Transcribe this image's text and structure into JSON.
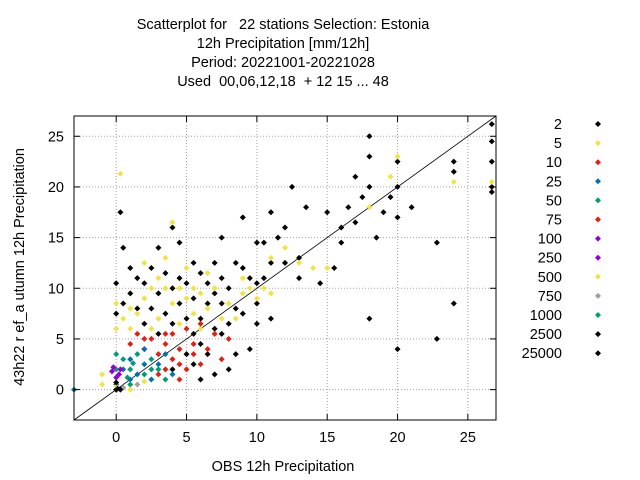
{
  "chart_data": {
    "type": "scatter",
    "title_lines": [
      "Scatterplot for   22 stations Selection: Estonia",
      "12h Precipitation [mm/12h]",
      "Period: 20221001-20221028",
      "Used  00,06,12,18  + 12 15 ... 48"
    ],
    "xlabel": "OBS 12h Precipitation",
    "ylabel": "43h22 r ef_a utumn 12h Precipitation",
    "xlim": [
      -3,
      27
    ],
    "ylim": [
      -3,
      27
    ],
    "x_ticks": [
      0,
      5,
      10,
      15,
      20,
      25
    ],
    "y_ticks": [
      0,
      5,
      10,
      15,
      20,
      25
    ],
    "grid": true,
    "legend_position": "right",
    "diagonal_line": true,
    "legend": [
      {
        "label": "2",
        "color": "#000000"
      },
      {
        "label": "5",
        "color": "#f0e442"
      },
      {
        "label": "10",
        "color": "#e51e10"
      },
      {
        "label": "25",
        "color": "#0072b2"
      },
      {
        "label": "50",
        "color": "#009e73"
      },
      {
        "label": "75",
        "color": "#e51e10"
      },
      {
        "label": "100",
        "color": "#9400d3"
      },
      {
        "label": "250",
        "color": "#9400d3"
      },
      {
        "label": "500",
        "color": "#f0e442"
      },
      {
        "label": "750",
        "color": "#a0a0a0"
      },
      {
        "label": "1000",
        "color": "#009e73"
      },
      {
        "label": "2500",
        "color": "#000000"
      },
      {
        "label": "25000",
        "color": "#000000"
      }
    ],
    "series": [
      {
        "legend_index": 0,
        "points": [
          [
            26.7,
            26.2
          ],
          [
            26.7,
            24.5
          ],
          [
            26.7,
            22.5
          ],
          [
            26.7,
            20.0
          ],
          [
            26.7,
            19.5
          ],
          [
            24.0,
            22.5
          ],
          [
            24.0,
            21.5
          ],
          [
            24.0,
            8.5
          ],
          [
            22.8,
            5.0
          ],
          [
            22.8,
            14.5
          ],
          [
            20.0,
            22.5
          ],
          [
            20.0,
            20.0
          ],
          [
            20.0,
            17.0
          ],
          [
            20.0,
            4.0
          ],
          [
            21.0,
            18.0
          ],
          [
            19.5,
            19.0
          ],
          [
            18.0,
            25.0
          ],
          [
            18.0,
            23.0
          ],
          [
            18.0,
            20.0
          ],
          [
            18.0,
            7.0
          ],
          [
            18.5,
            15.0
          ],
          [
            19.0,
            17.5
          ],
          [
            17.0,
            21.0
          ],
          [
            17.0,
            16.5
          ],
          [
            17.5,
            19.0
          ],
          [
            16.5,
            18.0
          ],
          [
            16.0,
            16.0
          ],
          [
            16.0,
            14.5
          ],
          [
            15.5,
            12.0
          ],
          [
            15.0,
            17.5
          ],
          [
            14.5,
            10.5
          ],
          [
            13.5,
            18.0
          ],
          [
            13.0,
            13.0
          ],
          [
            13.0,
            11.0
          ],
          [
            12.5,
            20.0
          ],
          [
            12.0,
            16.0
          ],
          [
            12.0,
            12.5
          ],
          [
            11.5,
            15.0
          ],
          [
            11.0,
            17.5
          ],
          [
            11.0,
            12.5
          ],
          [
            11.0,
            7.0
          ],
          [
            10.5,
            14.5
          ],
          [
            10.5,
            11.0
          ],
          [
            10.0,
            14.5
          ],
          [
            10.0,
            10.5
          ],
          [
            10.0,
            8.5
          ],
          [
            10.0,
            6.5
          ],
          [
            9.5,
            11.0
          ],
          [
            9.5,
            4.0
          ],
          [
            9.0,
            17.0
          ],
          [
            9.0,
            12.0
          ],
          [
            9.0,
            7.5
          ],
          [
            8.5,
            12.5
          ],
          [
            8.5,
            8.0
          ],
          [
            8.5,
            3.5
          ],
          [
            8.0,
            10.0
          ],
          [
            8.0,
            6.5
          ],
          [
            8.0,
            2.0
          ],
          [
            7.5,
            15.0
          ],
          [
            7.5,
            11.0
          ],
          [
            7.5,
            8.5
          ],
          [
            7.5,
            5.5
          ],
          [
            7.0,
            12.5
          ],
          [
            7.0,
            9.5
          ],
          [
            7.0,
            6.0
          ],
          [
            7.0,
            1.5
          ],
          [
            6.5,
            10.5
          ],
          [
            6.5,
            8.5
          ],
          [
            6.5,
            3.5
          ],
          [
            6.0,
            11.5
          ],
          [
            6.0,
            7.0
          ],
          [
            6.0,
            4.5
          ],
          [
            6.0,
            1.0
          ],
          [
            5.5,
            12.5
          ],
          [
            5.5,
            9.0
          ],
          [
            5.5,
            5.5
          ],
          [
            5.5,
            2.5
          ],
          [
            5.0,
            10.5
          ],
          [
            5.0,
            7.0
          ],
          [
            5.0,
            3.5
          ],
          [
            4.5,
            14.5
          ],
          [
            4.5,
            11.0
          ],
          [
            4.5,
            8.5
          ],
          [
            4.0,
            16.0
          ],
          [
            4.0,
            10.0
          ],
          [
            4.0,
            6.5
          ],
          [
            4.0,
            2.0
          ],
          [
            3.5,
            11.5
          ],
          [
            3.5,
            7.5
          ],
          [
            3.0,
            14.0
          ],
          [
            3.0,
            9.5
          ],
          [
            3.0,
            5.5
          ],
          [
            2.5,
            12.0
          ],
          [
            2.5,
            8.0
          ],
          [
            2.0,
            10.5
          ],
          [
            2.0,
            6.5
          ],
          [
            1.5,
            11.0
          ],
          [
            1.5,
            8.0
          ],
          [
            1.0,
            12.0
          ],
          [
            1.0,
            9.5
          ],
          [
            0.5,
            8.5
          ],
          [
            0.3,
            17.5
          ],
          [
            0.5,
            14.0
          ],
          [
            0.0,
            10.5
          ],
          [
            0.0,
            7.5
          ],
          [
            0.0,
            0.0
          ]
        ]
      },
      {
        "legend_index": 1,
        "points": [
          [
            26.7,
            20.5
          ],
          [
            24.0,
            20.5
          ],
          [
            20.0,
            23.0
          ],
          [
            19.5,
            21.0
          ],
          [
            18.0,
            18.0
          ],
          [
            15.0,
            12.0
          ],
          [
            14.0,
            12.0
          ],
          [
            13.0,
            12.5
          ],
          [
            12.0,
            14.0
          ],
          [
            11.0,
            13.0
          ],
          [
            11.0,
            9.5
          ],
          [
            10.5,
            10.0
          ],
          [
            10.0,
            9.0
          ],
          [
            9.5,
            10.0
          ],
          [
            9.0,
            9.5
          ],
          [
            9.0,
            11.0
          ],
          [
            8.5,
            7.0
          ],
          [
            8.0,
            8.5
          ],
          [
            7.5,
            7.0
          ],
          [
            7.0,
            10.0
          ],
          [
            6.5,
            8.0
          ],
          [
            6.5,
            11.5
          ],
          [
            6.0,
            9.5
          ],
          [
            6.0,
            6.0
          ],
          [
            5.5,
            7.5
          ],
          [
            5.5,
            10.0
          ],
          [
            5.0,
            12.0
          ],
          [
            5.0,
            9.0
          ],
          [
            4.5,
            10.0
          ],
          [
            4.5,
            6.5
          ],
          [
            4.0,
            8.5
          ],
          [
            4.0,
            16.5
          ],
          [
            3.5,
            10.0
          ],
          [
            3.5,
            13.0
          ],
          [
            3.0,
            11.0
          ],
          [
            3.0,
            7.0
          ],
          [
            2.5,
            10.0
          ],
          [
            2.5,
            6.0
          ],
          [
            2.0,
            9.0
          ],
          [
            2.0,
            12.5
          ],
          [
            1.5,
            7.5
          ],
          [
            1.0,
            8.0
          ],
          [
            1.0,
            6.0
          ],
          [
            0.5,
            7.0
          ],
          [
            0.3,
            21.3
          ],
          [
            0.0,
            8.5
          ],
          [
            0.0,
            6.0
          ],
          [
            -1.0,
            1.5
          ],
          [
            -1.0,
            0.5
          ]
        ]
      },
      {
        "legend_index": 2,
        "points": [
          [
            8.0,
            5.0
          ],
          [
            7.5,
            3.0
          ],
          [
            7.0,
            5.5
          ],
          [
            6.5,
            4.0
          ],
          [
            6.0,
            2.5
          ],
          [
            6.0,
            6.5
          ],
          [
            5.5,
            4.5
          ],
          [
            5.0,
            2.0
          ],
          [
            5.0,
            6.0
          ],
          [
            4.5,
            4.0
          ],
          [
            4.5,
            1.0
          ],
          [
            4.0,
            3.0
          ],
          [
            4.0,
            5.5
          ],
          [
            3.5,
            2.0
          ],
          [
            3.5,
            4.5
          ],
          [
            3.0,
            1.5
          ],
          [
            3.0,
            3.5
          ],
          [
            2.5,
            5.0
          ],
          [
            2.0,
            4.0
          ],
          [
            1.5,
            5.5
          ],
          [
            1.0,
            4.5
          ]
        ]
      },
      {
        "legend_index": 3,
        "points": [
          [
            -3.0,
            0.0
          ],
          [
            0.0,
            0.5
          ],
          [
            0.5,
            2.0
          ],
          [
            1.0,
            3.0
          ],
          [
            1.5,
            1.5
          ],
          [
            2.0,
            2.5
          ],
          [
            2.5,
            1.0
          ],
          [
            3.0,
            2.5
          ],
          [
            3.5,
            3.5
          ],
          [
            4.0,
            1.5
          ],
          [
            1.0,
            1.0
          ],
          [
            2.0,
            4.0
          ]
        ]
      },
      {
        "legend_index": 4,
        "points": [
          [
            0.0,
            2.0
          ],
          [
            0.0,
            3.5
          ],
          [
            0.5,
            3.0
          ],
          [
            1.0,
            2.0
          ],
          [
            1.5,
            3.5
          ],
          [
            2.0,
            1.5
          ],
          [
            2.5,
            3.0
          ],
          [
            3.0,
            2.0
          ],
          [
            3.5,
            1.0
          ],
          [
            1.0,
            0.5
          ]
        ]
      },
      {
        "legend_index": 5,
        "points": [
          [
            4.5,
            2.5
          ],
          [
            5.5,
            3.5
          ],
          [
            3.5,
            5.5
          ],
          [
            2.0,
            5.0
          ]
        ]
      },
      {
        "legend_index": 6,
        "points": [
          [
            -0.3,
            1.8
          ],
          [
            0.0,
            1.2
          ],
          [
            0.3,
            2.0
          ]
        ]
      },
      {
        "legend_index": 7,
        "points": [
          [
            0.2,
            1.5
          ],
          [
            -0.2,
            2.2
          ]
        ]
      },
      {
        "legend_index": 8,
        "points": [
          [
            0.0,
            0.3
          ],
          [
            1.0,
            0.0
          ],
          [
            2.0,
            0.8
          ]
        ]
      },
      {
        "legend_index": 9,
        "points": [
          [
            0.5,
            0.2
          ],
          [
            1.5,
            0.5
          ]
        ]
      },
      {
        "legend_index": 10,
        "points": [
          [
            0.8,
            1.2
          ],
          [
            2.5,
            2.0
          ],
          [
            1.2,
            2.6
          ]
        ]
      },
      {
        "legend_index": 11,
        "points": [
          [
            0.3,
            0.0
          ],
          [
            0.0,
            0.7
          ]
        ]
      },
      {
        "legend_index": 12,
        "points": [
          [
            0.1,
            0.1
          ]
        ]
      }
    ]
  }
}
